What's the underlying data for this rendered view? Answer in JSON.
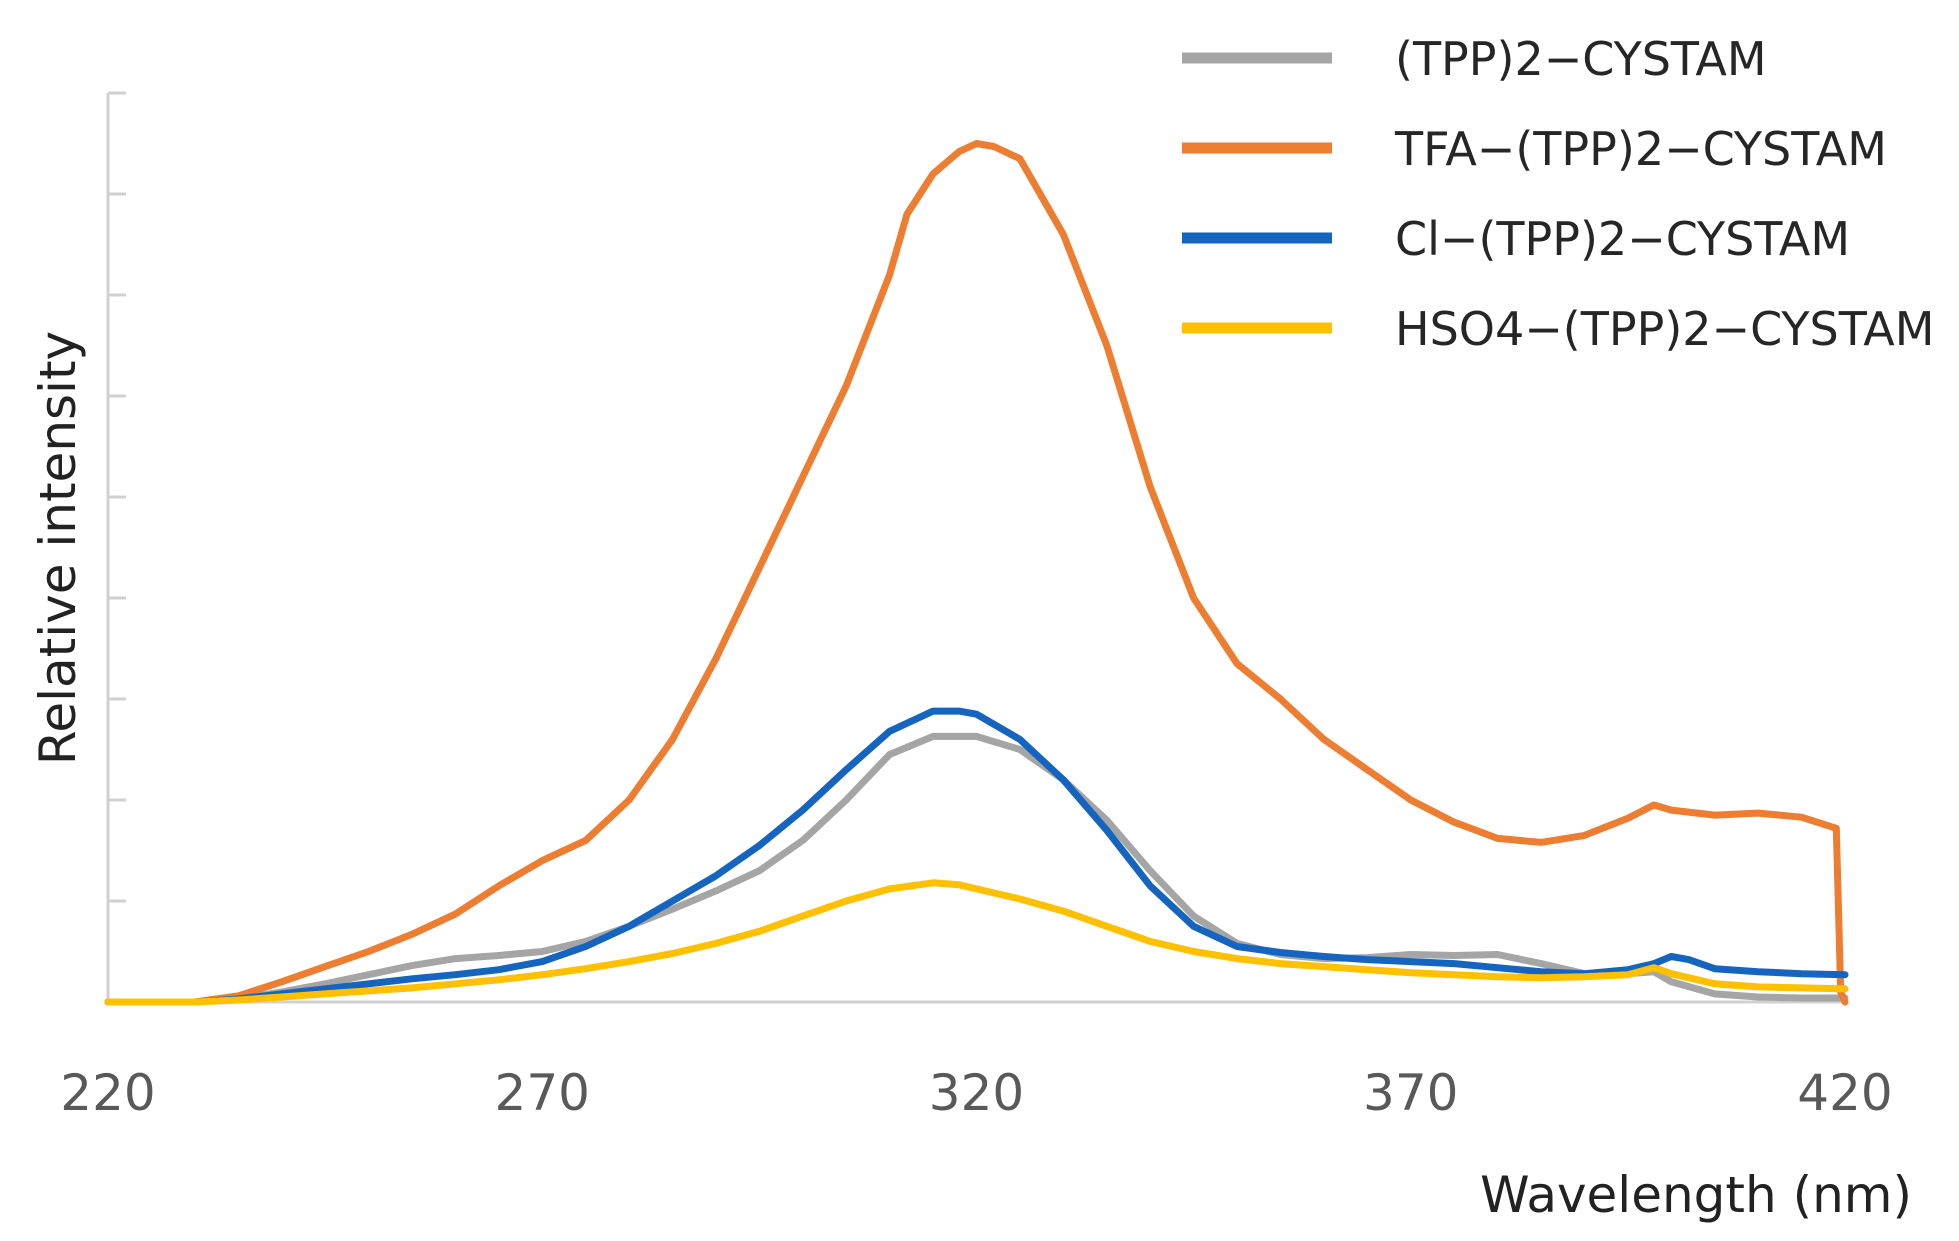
{
  "chart_data": {
    "type": "line",
    "title": "",
    "xlabel": "Wavelength (nm)",
    "ylabel": "Relative intensity",
    "xlim": [
      220,
      420
    ],
    "ylim": [
      0,
      9
    ],
    "x_ticks": [
      "220",
      "270",
      "320",
      "370",
      "420"
    ],
    "y_tick_values": [
      0,
      1,
      2,
      3,
      4,
      5,
      6,
      7,
      8,
      9
    ],
    "y_tick_labels_shown": false,
    "grid": false,
    "legend_position": "top-right",
    "series": [
      {
        "name": "(TPP)2−CYSTAM",
        "color": "#a5a5a5",
        "x": [
          220,
          230,
          235,
          240,
          245,
          250,
          255,
          260,
          265,
          270,
          275,
          280,
          285,
          290,
          295,
          300,
          305,
          310,
          315,
          320,
          325,
          330,
          335,
          340,
          345,
          350,
          355,
          360,
          365,
          370,
          375,
          380,
          385,
          390,
          395,
          398,
          400,
          405,
          410,
          415,
          420
        ],
        "y": [
          0,
          0,
          0.03,
          0.1,
          0.18,
          0.27,
          0.36,
          0.43,
          0.46,
          0.5,
          0.6,
          0.75,
          0.92,
          1.1,
          1.3,
          1.6,
          2.0,
          2.45,
          2.63,
          2.63,
          2.5,
          2.2,
          1.8,
          1.3,
          0.85,
          0.58,
          0.47,
          0.43,
          0.44,
          0.47,
          0.46,
          0.47,
          0.38,
          0.28,
          0.28,
          0.3,
          0.2,
          0.08,
          0.05,
          0.04,
          0.04
        ]
      },
      {
        "name": "TFA−(TPP)2−CYSTAM",
        "color": "#ed7d31",
        "x": [
          220,
          230,
          235,
          240,
          245,
          250,
          255,
          260,
          265,
          270,
          275,
          280,
          285,
          290,
          295,
          300,
          305,
          310,
          312,
          315,
          318,
          320,
          322,
          325,
          330,
          335,
          340,
          345,
          350,
          355,
          360,
          365,
          370,
          375,
          380,
          385,
          390,
          395,
          398,
          400,
          405,
          410,
          415,
          419,
          419.5,
          420
        ],
        "y": [
          0,
          0,
          0.06,
          0.2,
          0.35,
          0.5,
          0.67,
          0.87,
          1.15,
          1.4,
          1.6,
          2.0,
          2.6,
          3.4,
          4.3,
          5.2,
          6.1,
          7.2,
          7.8,
          8.2,
          8.42,
          8.5,
          8.47,
          8.35,
          7.6,
          6.5,
          5.1,
          4.0,
          3.35,
          3.0,
          2.6,
          2.3,
          2.0,
          1.78,
          1.62,
          1.58,
          1.65,
          1.82,
          1.95,
          1.9,
          1.85,
          1.87,
          1.83,
          1.72,
          0.1,
          0
        ]
      },
      {
        "name": "Cl−(TPP)2−CYSTAM",
        "color": "#1565c0",
        "x": [
          220,
          230,
          235,
          240,
          245,
          250,
          255,
          260,
          265,
          270,
          275,
          280,
          285,
          290,
          295,
          300,
          305,
          310,
          315,
          318,
          320,
          325,
          330,
          335,
          340,
          345,
          350,
          355,
          360,
          365,
          370,
          375,
          380,
          385,
          390,
          395,
          398,
          400,
          402,
          405,
          410,
          415,
          420
        ],
        "y": [
          0,
          0,
          0.03,
          0.08,
          0.13,
          0.18,
          0.23,
          0.27,
          0.32,
          0.4,
          0.55,
          0.75,
          1.0,
          1.25,
          1.55,
          1.9,
          2.3,
          2.68,
          2.88,
          2.88,
          2.85,
          2.6,
          2.2,
          1.7,
          1.15,
          0.75,
          0.55,
          0.49,
          0.45,
          0.42,
          0.4,
          0.38,
          0.34,
          0.3,
          0.28,
          0.32,
          0.38,
          0.45,
          0.42,
          0.33,
          0.3,
          0.28,
          0.27
        ]
      },
      {
        "name": "HSO4−(TPP)2−CYSTAM",
        "color": "#ffc000",
        "x": [
          220,
          230,
          235,
          240,
          245,
          250,
          255,
          260,
          265,
          270,
          275,
          280,
          285,
          290,
          295,
          300,
          305,
          310,
          315,
          318,
          320,
          325,
          330,
          335,
          340,
          345,
          350,
          355,
          360,
          365,
          370,
          375,
          380,
          385,
          390,
          395,
          398,
          400,
          405,
          410,
          415,
          420
        ],
        "y": [
          0,
          0,
          0.02,
          0.05,
          0.08,
          0.11,
          0.14,
          0.18,
          0.22,
          0.27,
          0.33,
          0.4,
          0.48,
          0.58,
          0.7,
          0.85,
          1.0,
          1.12,
          1.18,
          1.16,
          1.12,
          1.02,
          0.9,
          0.75,
          0.6,
          0.5,
          0.43,
          0.38,
          0.35,
          0.32,
          0.29,
          0.27,
          0.25,
          0.24,
          0.25,
          0.27,
          0.34,
          0.28,
          0.18,
          0.15,
          0.14,
          0.13
        ]
      }
    ]
  }
}
